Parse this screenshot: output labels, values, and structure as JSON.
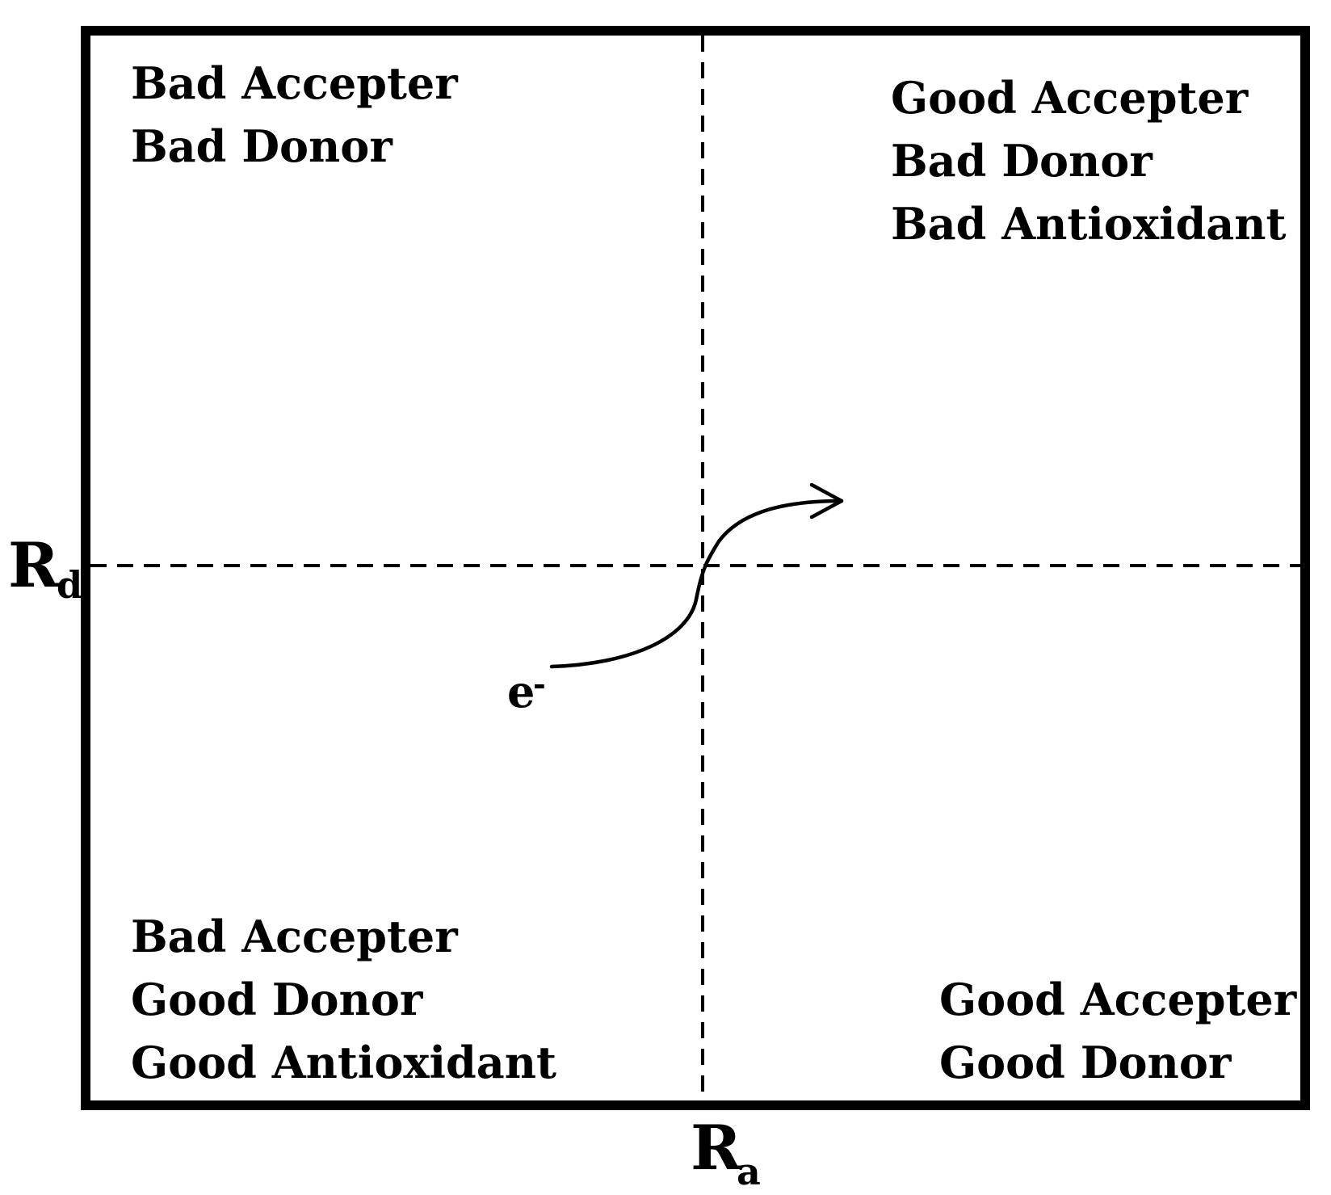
{
  "quadrants": {
    "top_left": {
      "lines": [
        "Bad Accepter",
        "Bad Donor"
      ]
    },
    "top_right": {
      "lines": [
        "Good Accepter",
        "Bad Donor",
        "Bad Antioxidant"
      ]
    },
    "bottom_left": {
      "lines": [
        "Bad Accepter",
        "Good Donor",
        "Good Antioxidant"
      ]
    },
    "bottom_right": {
      "lines": [
        "Good Accepter",
        "Good Donor"
      ]
    }
  },
  "axes": {
    "y_axis": {
      "main": "R",
      "sub": "d"
    },
    "x_axis": {
      "main": "R",
      "sub": "a"
    }
  },
  "electron": {
    "main": "e",
    "sup": "-"
  },
  "colors": {
    "line": "#000000",
    "background": "#ffffff"
  }
}
